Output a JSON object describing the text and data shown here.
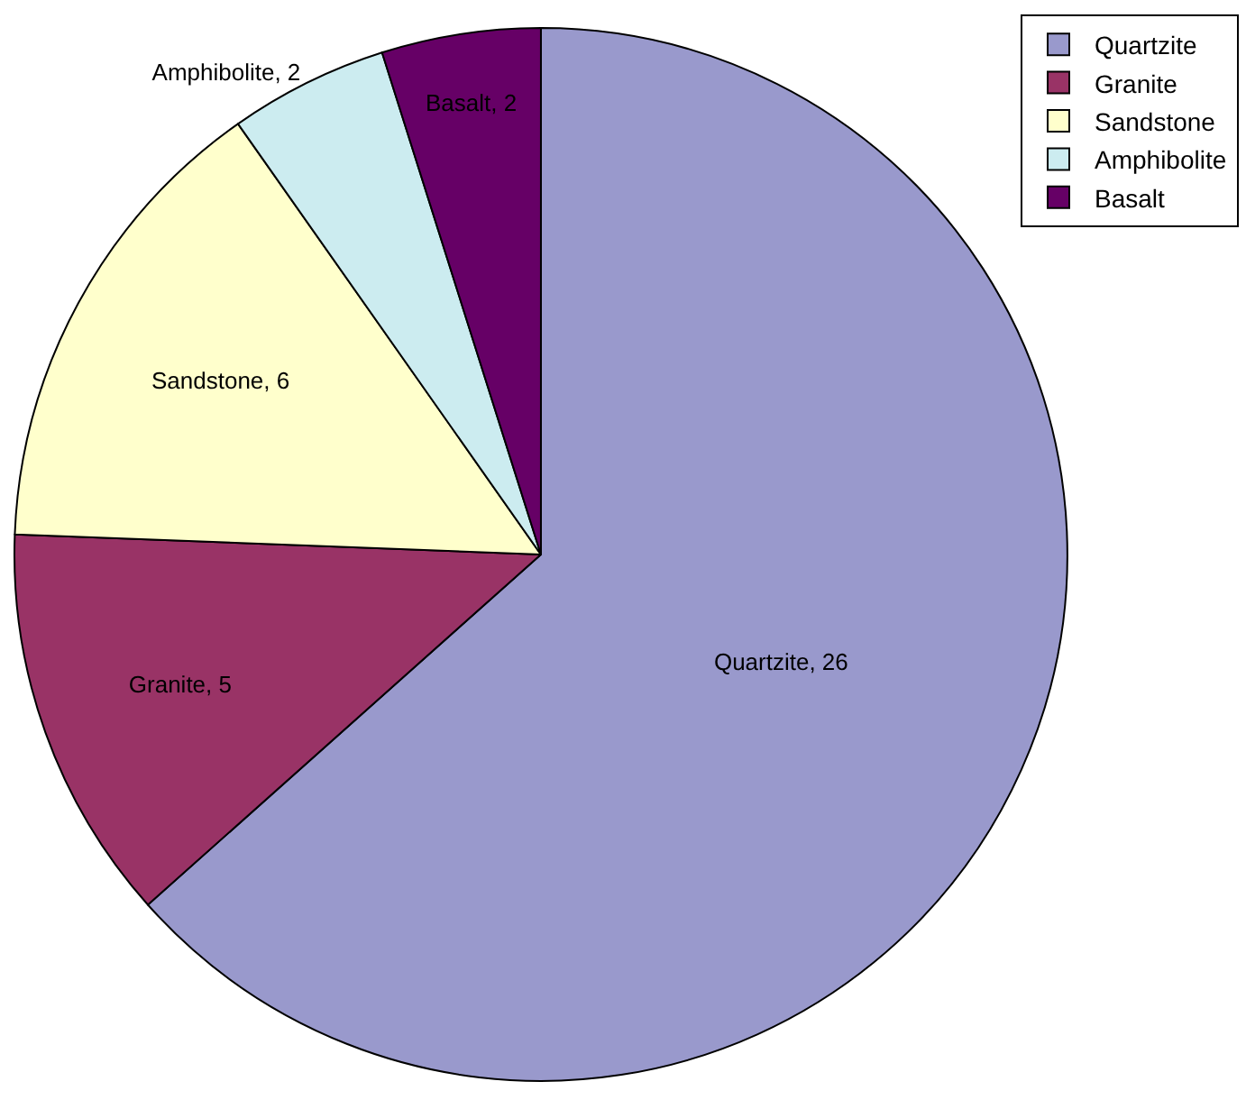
{
  "chart_data": {
    "type": "pie",
    "categories": [
      "Quartzite",
      "Granite",
      "Sandstone",
      "Amphibolite",
      "Basalt"
    ],
    "values": [
      26,
      5,
      6,
      2,
      2
    ],
    "value_labels": [
      "Quartzite, 26",
      "Granite, 5",
      "Sandstone, 6",
      "Amphibolite, 2",
      "Basalt, 2"
    ],
    "colors": [
      "#9999cc",
      "#993366",
      "#ffffcc",
      "#ccecf0",
      "#660066"
    ],
    "legend": "top right"
  }
}
